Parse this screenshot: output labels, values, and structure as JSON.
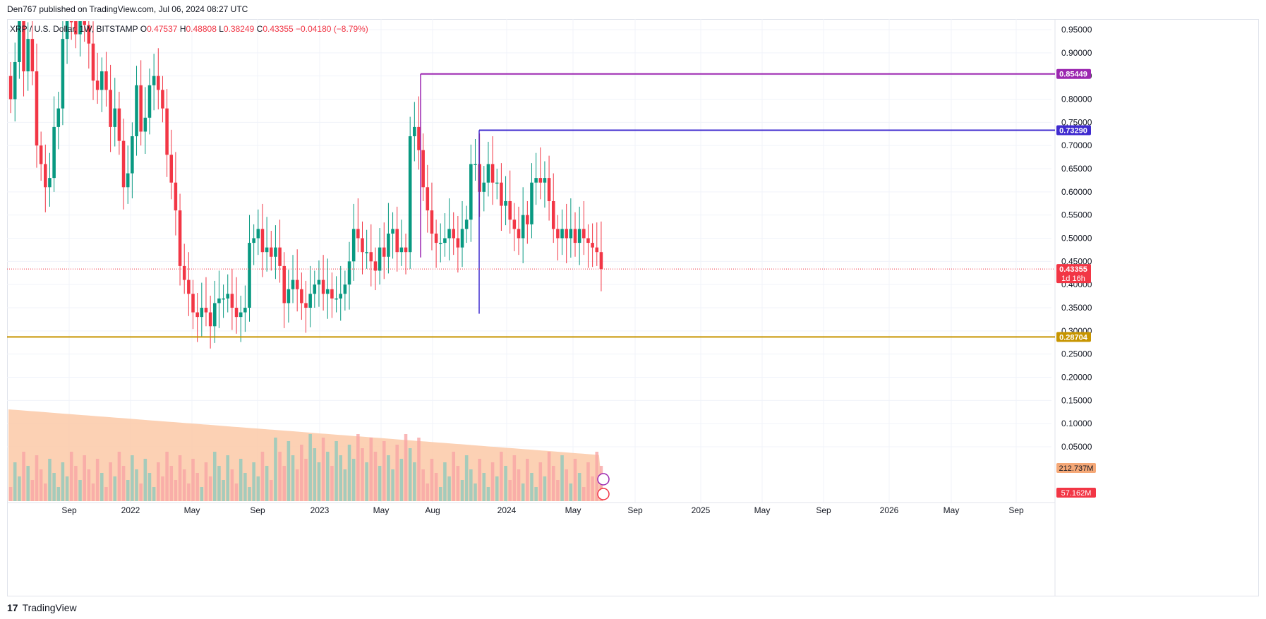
{
  "header": {
    "publisher_line": "Den767 published on TradingView.com, Jul 06, 2024 08:27 UTC"
  },
  "legend": {
    "symbol": "XRP / U.S. Dollar, 1W, BITSTAMP",
    "o_label": "O",
    "o_val": "0.47537",
    "h_label": "H",
    "h_val": "0.48808",
    "l_label": "L",
    "l_val": "0.38249",
    "c_label": "C",
    "c_val": "0.43355",
    "change": "−0.04180 (−8.79%)"
  },
  "footer": {
    "brand": "TradingView",
    "logo_glyph": "17"
  },
  "colors": {
    "up": "#089981",
    "down": "#f23645",
    "vol_up": "#8fc9bd",
    "vol_down": "#f7a5a5",
    "vol_ma": "#fcc9a7",
    "line_purple": "#9c27b0",
    "line_indigo": "#3f2bcf",
    "line_gold": "#c79500"
  },
  "chart_data": {
    "type": "candlestick",
    "timeframe": "1W",
    "yaxis": {
      "ticks": [
        "0.95000",
        "0.90000",
        "0.85000",
        "0.80000",
        "0.75000",
        "0.70000",
        "0.65000",
        "0.60000",
        "0.55000",
        "0.50000",
        "0.45000",
        "0.40000",
        "0.35000",
        "0.30000",
        "0.25000",
        "0.20000",
        "0.15000",
        "0.10000",
        "0.05000"
      ],
      "ylim": [
        0.0,
        0.97
      ]
    },
    "xaxis": {
      "labels": [
        "Sep",
        "2022",
        "May",
        "Sep",
        "2023",
        "May",
        "Aug",
        "2024",
        "May",
        "Sep",
        "2025",
        "May",
        "Sep",
        "2026",
        "May",
        "Sep"
      ]
    },
    "horizontal_lines": [
      {
        "value": 0.85449,
        "label": "0.85449",
        "color": "#9c27b0"
      },
      {
        "value": 0.7329,
        "label": "0.73290",
        "color": "#3f2bcf"
      },
      {
        "value": 0.28704,
        "label": "0.28704",
        "color": "#c79500"
      }
    ],
    "price_badge": {
      "value": 0.43355,
      "label": "0.43355",
      "countdown": "1d 16h"
    },
    "volume_badges": {
      "ma": "212.737M",
      "last": "57.162M"
    },
    "candles_close": [
      0.8,
      0.88,
      0.97,
      0.86,
      0.93,
      0.86,
      0.7,
      0.66,
      0.61,
      0.63,
      0.74,
      0.78,
      0.93,
      1.0,
      0.97,
      0.94,
      0.98,
      0.96,
      0.92,
      0.84,
      0.82,
      0.86,
      0.82,
      0.74,
      0.78,
      0.71,
      0.61,
      0.64,
      0.72,
      0.83,
      0.73,
      0.76,
      0.83,
      0.85,
      0.82,
      0.78,
      0.68,
      0.62,
      0.56,
      0.44,
      0.41,
      0.38,
      0.34,
      0.33,
      0.35,
      0.34,
      0.31,
      0.36,
      0.37,
      0.37,
      0.38,
      0.35,
      0.33,
      0.34,
      0.35,
      0.49,
      0.5,
      0.52,
      0.47,
      0.48,
      0.46,
      0.48,
      0.44,
      0.36,
      0.39,
      0.41,
      0.39,
      0.36,
      0.35,
      0.38,
      0.4,
      0.41,
      0.38,
      0.39,
      0.37,
      0.37,
      0.38,
      0.4,
      0.45,
      0.52,
      0.5,
      0.47,
      0.47,
      0.45,
      0.43,
      0.48,
      0.46,
      0.51,
      0.52,
      0.47,
      0.48,
      0.47,
      0.72,
      0.74,
      0.69,
      0.61,
      0.56,
      0.51,
      0.49,
      0.49,
      0.5,
      0.52,
      0.5,
      0.48,
      0.52,
      0.54,
      0.66,
      0.66,
      0.6,
      0.62,
      0.66,
      0.62,
      0.62,
      0.57,
      0.58,
      0.54,
      0.52,
      0.5,
      0.55,
      0.53,
      0.62,
      0.63,
      0.62,
      0.63,
      0.58,
      0.52,
      0.5,
      0.52,
      0.5,
      0.52,
      0.49,
      0.52,
      0.5,
      0.49,
      0.48,
      0.47,
      0.43355
    ],
    "note": "last value 0.43355"
  }
}
